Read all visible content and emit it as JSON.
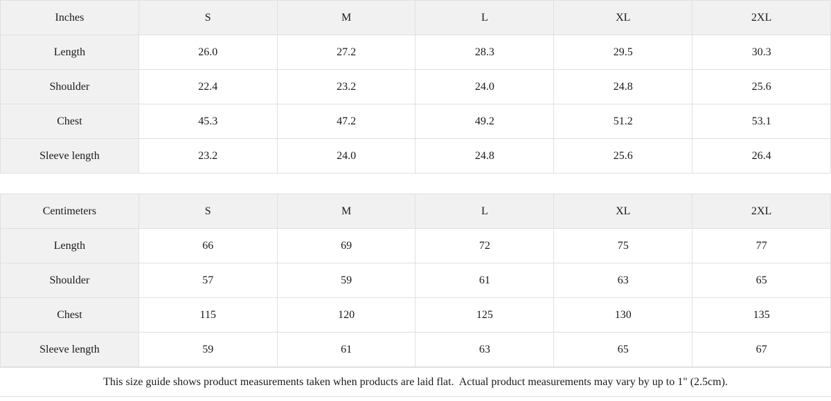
{
  "colors": {
    "header_background": "#f1f1f1",
    "cell_background": "#ffffff",
    "border": "#e0e0e0",
    "text": "#1a1a1a"
  },
  "tables": [
    {
      "unit_label": "Inches",
      "sizes": [
        "S",
        "M",
        "L",
        "XL",
        "2XL"
      ],
      "rows": [
        {
          "label": "Length",
          "values": [
            "26.0",
            "27.2",
            "28.3",
            "29.5",
            "30.3"
          ]
        },
        {
          "label": "Shoulder",
          "values": [
            "22.4",
            "23.2",
            "24.0",
            "24.8",
            "25.6"
          ]
        },
        {
          "label": "Chest",
          "values": [
            "45.3",
            "47.2",
            "49.2",
            "51.2",
            "53.1"
          ]
        },
        {
          "label": "Sleeve length",
          "values": [
            "23.2",
            "24.0",
            "24.8",
            "25.6",
            "26.4"
          ]
        }
      ]
    },
    {
      "unit_label": "Centimeters",
      "sizes": [
        "S",
        "M",
        "L",
        "XL",
        "2XL"
      ],
      "rows": [
        {
          "label": "Length",
          "values": [
            "66",
            "69",
            "72",
            "75",
            "77"
          ]
        },
        {
          "label": "Shoulder",
          "values": [
            "57",
            "59",
            "61",
            "63",
            "65"
          ]
        },
        {
          "label": "Chest",
          "values": [
            "115",
            "120",
            "125",
            "130",
            "135"
          ]
        },
        {
          "label": "Sleeve length",
          "values": [
            "59",
            "61",
            "63",
            "65",
            "67"
          ]
        }
      ]
    }
  ],
  "footer_note": "This size guide shows product measurements taken when products are laid flat.  Actual product measurements may vary by up to 1\" (2.5cm)."
}
